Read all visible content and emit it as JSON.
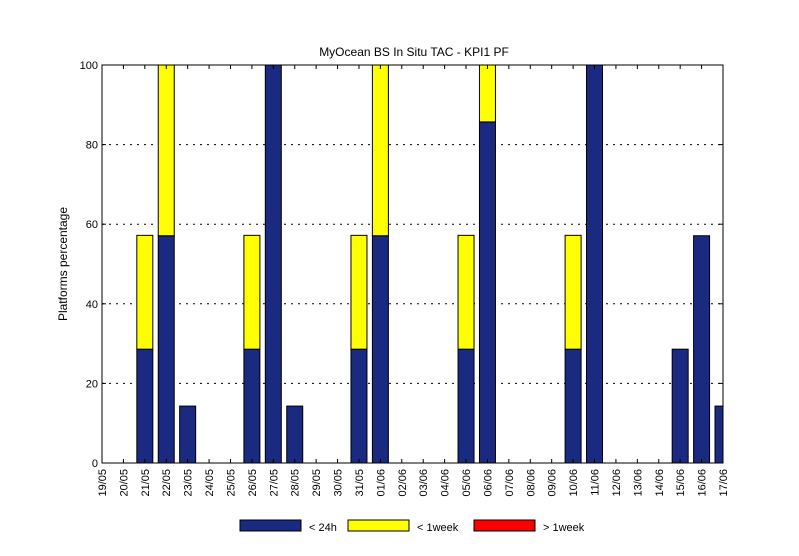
{
  "chart_data": {
    "type": "bar",
    "stacked": true,
    "title": "MyOcean  BS In Situ TAC - KPI1  PF",
    "xlabel": "",
    "ylabel": "Platforms percentage",
    "ylim": [
      0,
      100
    ],
    "yticks": [
      0,
      20,
      40,
      60,
      80,
      100
    ],
    "grid": true,
    "legend_position": "bottom",
    "categories": [
      "19/05",
      "20/05",
      "21/05",
      "22/05",
      "23/05",
      "24/05",
      "25/05",
      "26/05",
      "27/05",
      "28/05",
      "29/05",
      "30/05",
      "31/05",
      "01/06",
      "02/06",
      "03/06",
      "04/06",
      "05/06",
      "06/06",
      "07/06",
      "08/06",
      "09/06",
      "10/06",
      "11/06",
      "12/06",
      "13/06",
      "14/06",
      "15/06",
      "16/06",
      "17/06"
    ],
    "series": [
      {
        "name": "< 24h",
        "color": "#1a2a80",
        "values": [
          0,
          0,
          28.6,
          57.1,
          14.3,
          0,
          0,
          28.6,
          100,
          14.3,
          0,
          0,
          28.6,
          57.1,
          0,
          0,
          0,
          28.6,
          85.7,
          0,
          0,
          0,
          28.6,
          100,
          0,
          0,
          0,
          28.6,
          57.1,
          14.3
        ]
      },
      {
        "name": "< 1week",
        "color": "#ffff00",
        "values": [
          0,
          0,
          28.6,
          42.9,
          0,
          0,
          0,
          28.6,
          0,
          0,
          0,
          0,
          28.6,
          42.9,
          0,
          0,
          0,
          28.6,
          14.3,
          0,
          0,
          0,
          28.6,
          0,
          0,
          0,
          0,
          0,
          0,
          0
        ]
      },
      {
        "name": "> 1week",
        "color": "#ff0000",
        "values": [
          0,
          0,
          0,
          0,
          0,
          0,
          0,
          0,
          0,
          0,
          0,
          0,
          0,
          0,
          0,
          0,
          0,
          0,
          0,
          0,
          0,
          0,
          0,
          0,
          0,
          0,
          0,
          0,
          0,
          0
        ]
      }
    ]
  }
}
